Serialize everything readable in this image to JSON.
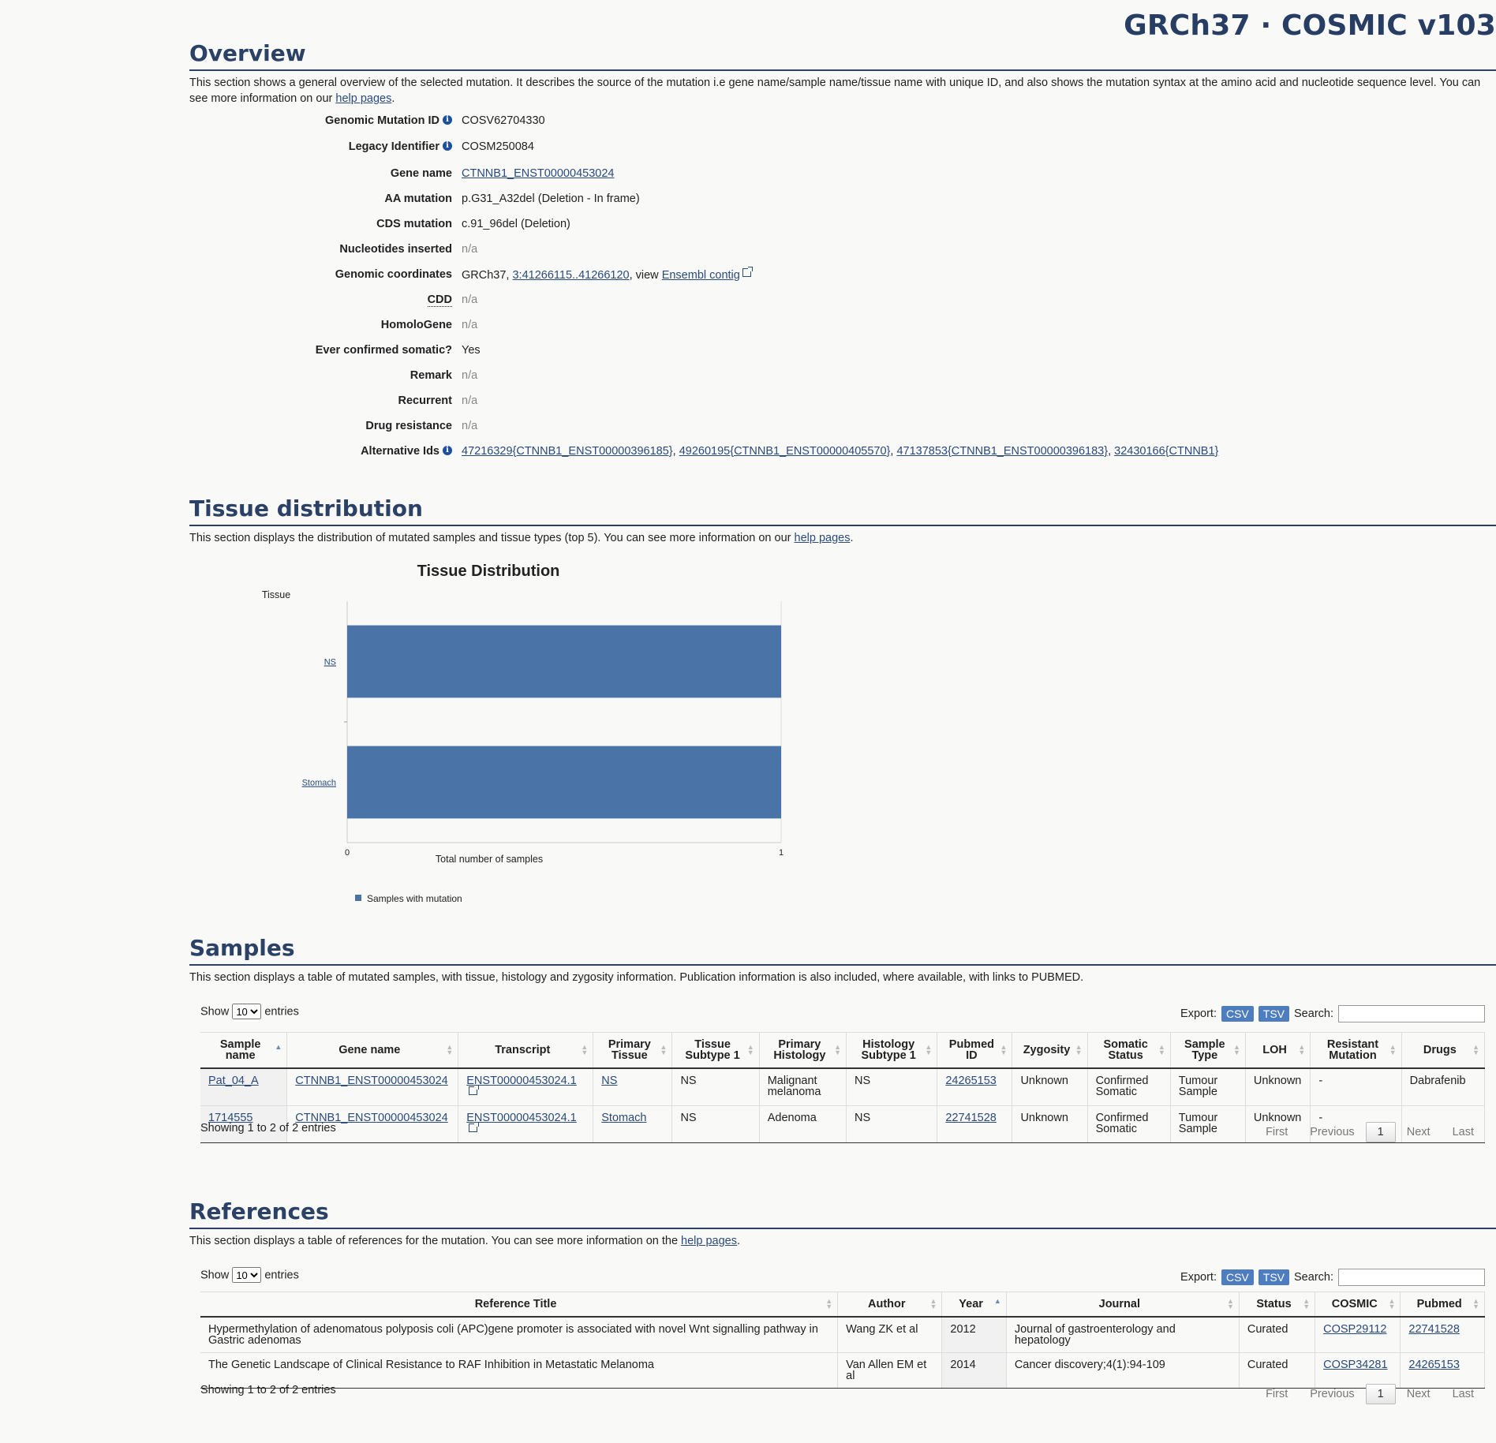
{
  "brand": "GRCh37 · COSMIC v103",
  "overview": {
    "title": "Overview",
    "desc_pre": "This section shows a general overview of the selected mutation. It describes the source of the mutation i.e gene name/sample name/tissue name with unique ID, and also shows the mutation syntax at the amino acid and nucleotide sequence level. You can see more information on our ",
    "desc_link": "help pages",
    "desc_post": ".",
    "rows": {
      "genomic_id": {
        "label": "Genomic Mutation ID",
        "value": "COSV62704330"
      },
      "legacy": {
        "label": "Legacy Identifier",
        "value": "COSM250084"
      },
      "gene": {
        "label": "Gene name",
        "value": "CTNNB1_ENST00000453024"
      },
      "aa": {
        "label": "AA mutation",
        "value": "p.G31_A32del (Deletion - In frame)"
      },
      "cds": {
        "label": "CDS mutation",
        "value": "c.91_96del (Deletion)"
      },
      "nucl": {
        "label": "Nucleotides inserted",
        "value": "n/a"
      },
      "coords": {
        "label": "Genomic coordinates",
        "prefix": "GRCh37, ",
        "link": "3:41266115..41266120",
        "mid": ", view ",
        "link2": "Ensembl contig"
      },
      "cdd": {
        "label": "CDD",
        "value": "n/a"
      },
      "homolo": {
        "label": "HomoloGene",
        "value": "n/a"
      },
      "confirmed": {
        "label": "Ever confirmed somatic?",
        "value": "Yes"
      },
      "remark": {
        "label": "Remark",
        "value": "n/a"
      },
      "recurrent": {
        "label": "Recurrent",
        "value": "n/a"
      },
      "drug": {
        "label": "Drug resistance",
        "value": "n/a"
      },
      "alt": {
        "label": "Alternative Ids",
        "ids": [
          "47216329{CTNNB1_ENST00000396185}",
          "49260195{CTNNB1_ENST00000405570}",
          "47137853{CTNNB1_ENST00000396183}",
          "32430166{CTNNB1}"
        ],
        "sep": ", "
      }
    }
  },
  "tissue": {
    "title": "Tissue distribution",
    "desc_pre": "This section displays the distribution of mutated samples and tissue types (top 5). You can see more information on our ",
    "desc_link": "help pages",
    "desc_post": "."
  },
  "chart_data": {
    "type": "bar",
    "orientation": "horizontal",
    "title": "Tissue Distribution",
    "ylabel": "Tissue",
    "xlabel": "Total number of samples",
    "categories": [
      "NS",
      "Stomach"
    ],
    "series": [
      {
        "name": "Samples with mutation",
        "values": [
          1,
          1
        ],
        "color": "#4a74a8"
      }
    ],
    "xlim": [
      0,
      1
    ],
    "xticks": [
      "0",
      "1"
    ],
    "legend": "bottom-left"
  },
  "samples": {
    "title": "Samples",
    "desc": "This section displays a table of mutated samples, with tissue, histology and zygosity information. Publication information is also included, where available, with links to PUBMED.",
    "show_label": "Show",
    "show_value": "10",
    "entries_label": "entries",
    "export_label": "Export:",
    "csv": "CSV",
    "tsv": "TSV",
    "search_label": "Search:",
    "headers": [
      "Sample name",
      "Gene name",
      "Transcript",
      "Primary Tissue",
      "Tissue Subtype 1",
      "Primary Histology",
      "Histology Subtype 1",
      "Pubmed ID",
      "Zygosity",
      "Somatic Status",
      "Sample Type",
      "LOH",
      "Resistant Mutation",
      "Drugs"
    ],
    "rows": [
      [
        "Pat_04_A",
        "CTNNB1_ENST00000453024",
        "ENST00000453024.1",
        "NS",
        "NS",
        "Malignant melanoma",
        "NS",
        "24265153",
        "Unknown",
        "Confirmed Somatic",
        "Tumour Sample",
        "Unknown",
        "-",
        "Dabrafenib"
      ],
      [
        "1714555",
        "CTNNB1_ENST00000453024",
        "ENST00000453024.1",
        "Stomach",
        "NS",
        "Adenoma",
        "NS",
        "22741528",
        "Unknown",
        "Confirmed Somatic",
        "Tumour Sample",
        "Unknown",
        "-",
        ""
      ]
    ],
    "info": "Showing 1 to 2 of 2 entries",
    "pager": {
      "first": "First",
      "previous": "Previous",
      "current": "1",
      "next": "Next",
      "last": "Last"
    }
  },
  "references": {
    "title": "References",
    "desc_pre": "This section displays a table of references for the mutation. You can see more information on the ",
    "desc_link": "help pages",
    "desc_post": ".",
    "show_label": "Show",
    "show_value": "10",
    "entries_label": "entries",
    "export_label": "Export:",
    "csv": "CSV",
    "tsv": "TSV",
    "search_label": "Search:",
    "headers": [
      "Reference Title",
      "Author",
      "Year",
      "Journal",
      "Status",
      "COSMIC",
      "Pubmed"
    ],
    "rows": [
      [
        "Hypermethylation of adenomatous polyposis coli (APC)gene promoter is associated with novel Wnt signalling pathway in Gastric adenomas",
        "Wang ZK et al",
        "2012",
        "Journal of gastroenterology and hepatology",
        "Curated",
        "COSP29112",
        "22741528"
      ],
      [
        "The Genetic Landscape of Clinical Resistance to RAF Inhibition in Metastatic Melanoma",
        "Van Allen EM et al",
        "2014",
        "Cancer discovery;4(1):94-109",
        "Curated",
        "COSP34281",
        "24265153"
      ]
    ],
    "info": "Showing 1 to 2 of 2 entries",
    "pager": {
      "first": "First",
      "previous": "Previous",
      "current": "1",
      "next": "Next",
      "last": "Last"
    }
  }
}
